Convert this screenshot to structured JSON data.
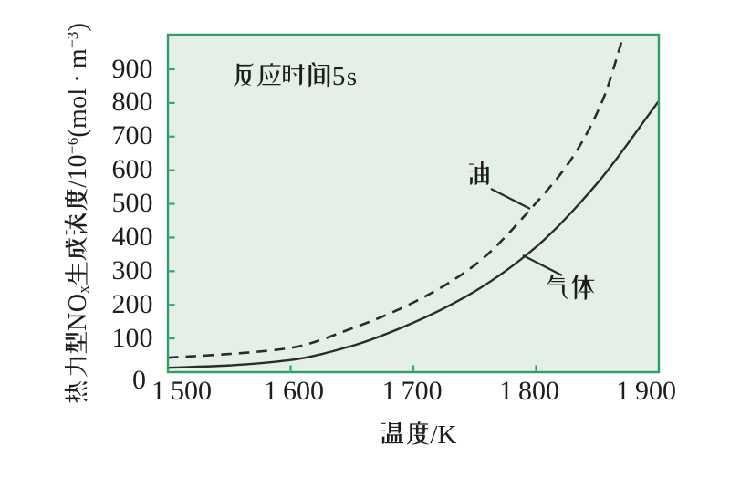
{
  "figure": {
    "kind": "line-chart",
    "background": "#ffffff"
  },
  "chart_data": {
    "type": "line",
    "annotation": "反应时间5s",
    "xlabel": "温度/K",
    "ylabel": "热力型NOx生成浓度/10−6(mol·m−3)",
    "ylabel_segments": [
      {
        "t": "热力型NO"
      },
      {
        "t": "x",
        "style": "sub"
      },
      {
        "t": "生成浓度/10"
      },
      {
        "t": "−6",
        "style": "sup"
      },
      {
        "t": "(mol · m"
      },
      {
        "t": "−3",
        "style": "sup"
      },
      {
        "t": ")"
      }
    ],
    "xlim": [
      1500,
      1900
    ],
    "ylim": [
      0,
      1003
    ],
    "x_ticks": {
      "values": [
        1500,
        1600,
        1700,
        1800,
        1900
      ],
      "labels": [
        "1 500",
        "1 600",
        "1 700",
        "1 800",
        "1 900"
      ]
    },
    "y_ticks": {
      "values": [
        0,
        100,
        200,
        300,
        400,
        500,
        600,
        700,
        800,
        900
      ],
      "labels": [
        "0",
        "100",
        "200",
        "300",
        "400",
        "500",
        "600",
        "700",
        "800",
        "900"
      ]
    },
    "series": [
      {
        "name": "油",
        "style": "dashed",
        "points": [
          [
            1500,
            43
          ],
          [
            1550,
            54
          ],
          [
            1600,
            72
          ],
          [
            1650,
            130
          ],
          [
            1700,
            207
          ],
          [
            1750,
            318
          ],
          [
            1800,
            503
          ],
          [
            1830,
            640
          ],
          [
            1855,
            815
          ],
          [
            1872,
            1010
          ]
        ]
      },
      {
        "name": "气体",
        "style": "solid",
        "points": [
          [
            1500,
            13
          ],
          [
            1550,
            20
          ],
          [
            1600,
            36
          ],
          [
            1650,
            78
          ],
          [
            1700,
            147
          ],
          [
            1750,
            240
          ],
          [
            1800,
            372
          ],
          [
            1850,
            562
          ],
          [
            1900,
            806
          ]
        ]
      }
    ],
    "legend_position": "inline-labels",
    "grid": false,
    "colors": {
      "plot_background": "#e4f0e5",
      "axis_border": "#2f9e66",
      "tick": "#37a46e",
      "curve": "#2b2b2b",
      "text": "#1d1d1d"
    }
  },
  "labels": {
    "oil": "油",
    "gas": "气体"
  }
}
